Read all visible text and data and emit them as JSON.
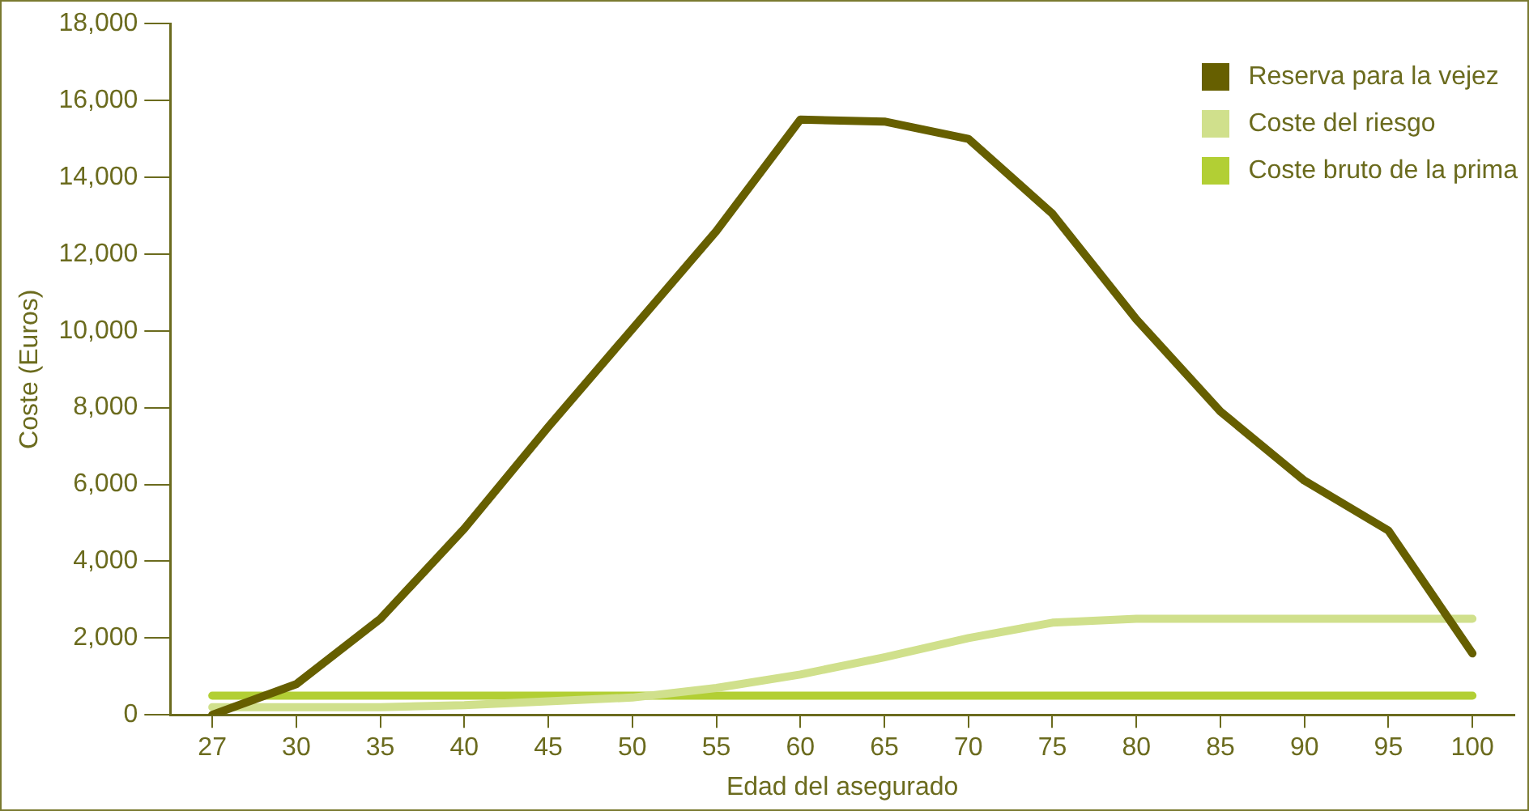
{
  "chart_data": {
    "type": "line",
    "xlabel": "Edad del asegurado",
    "ylabel": "Coste (Euros)",
    "categories": [
      "27",
      "30",
      "35",
      "40",
      "45",
      "50",
      "55",
      "60",
      "65",
      "70",
      "75",
      "80",
      "85",
      "90",
      "95",
      "100"
    ],
    "series": [
      {
        "name": "Reserva para la vejez",
        "color": "#665f00",
        "values": [
          0,
          800,
          2500,
          4850,
          7500,
          10050,
          12600,
          15500,
          15450,
          15000,
          13050,
          10300,
          7900,
          6100,
          4800,
          1600
        ]
      },
      {
        "name": "Coste del riesgo",
        "color": "#d0e08c",
        "values": [
          200,
          200,
          200,
          250,
          350,
          450,
          700,
          1050,
          1500,
          2000,
          2400,
          2500,
          2500,
          2500,
          2500,
          2500
        ]
      },
      {
        "name": "Coste bruto de la prima",
        "color": "#b2cf34",
        "values": [
          500,
          500,
          500,
          500,
          500,
          500,
          500,
          500,
          500,
          500,
          500,
          500,
          500,
          500,
          500,
          500
        ]
      }
    ],
    "ylim": [
      0,
      18000
    ],
    "yticks": [
      {
        "value": 0,
        "label": "0"
      },
      {
        "value": 2000,
        "label": "2,000"
      },
      {
        "value": 4000,
        "label": "4,000"
      },
      {
        "value": 6000,
        "label": "6,000"
      },
      {
        "value": 8000,
        "label": "8,000"
      },
      {
        "value": 10000,
        "label": "10,000"
      },
      {
        "value": 12000,
        "label": "12,000"
      },
      {
        "value": 14000,
        "label": "14,000"
      },
      {
        "value": 16000,
        "label": "16,000"
      },
      {
        "value": 18000,
        "label": "18,000"
      }
    ],
    "grid": false,
    "legend": "top right",
    "marker": "none",
    "line_style": "solid"
  }
}
